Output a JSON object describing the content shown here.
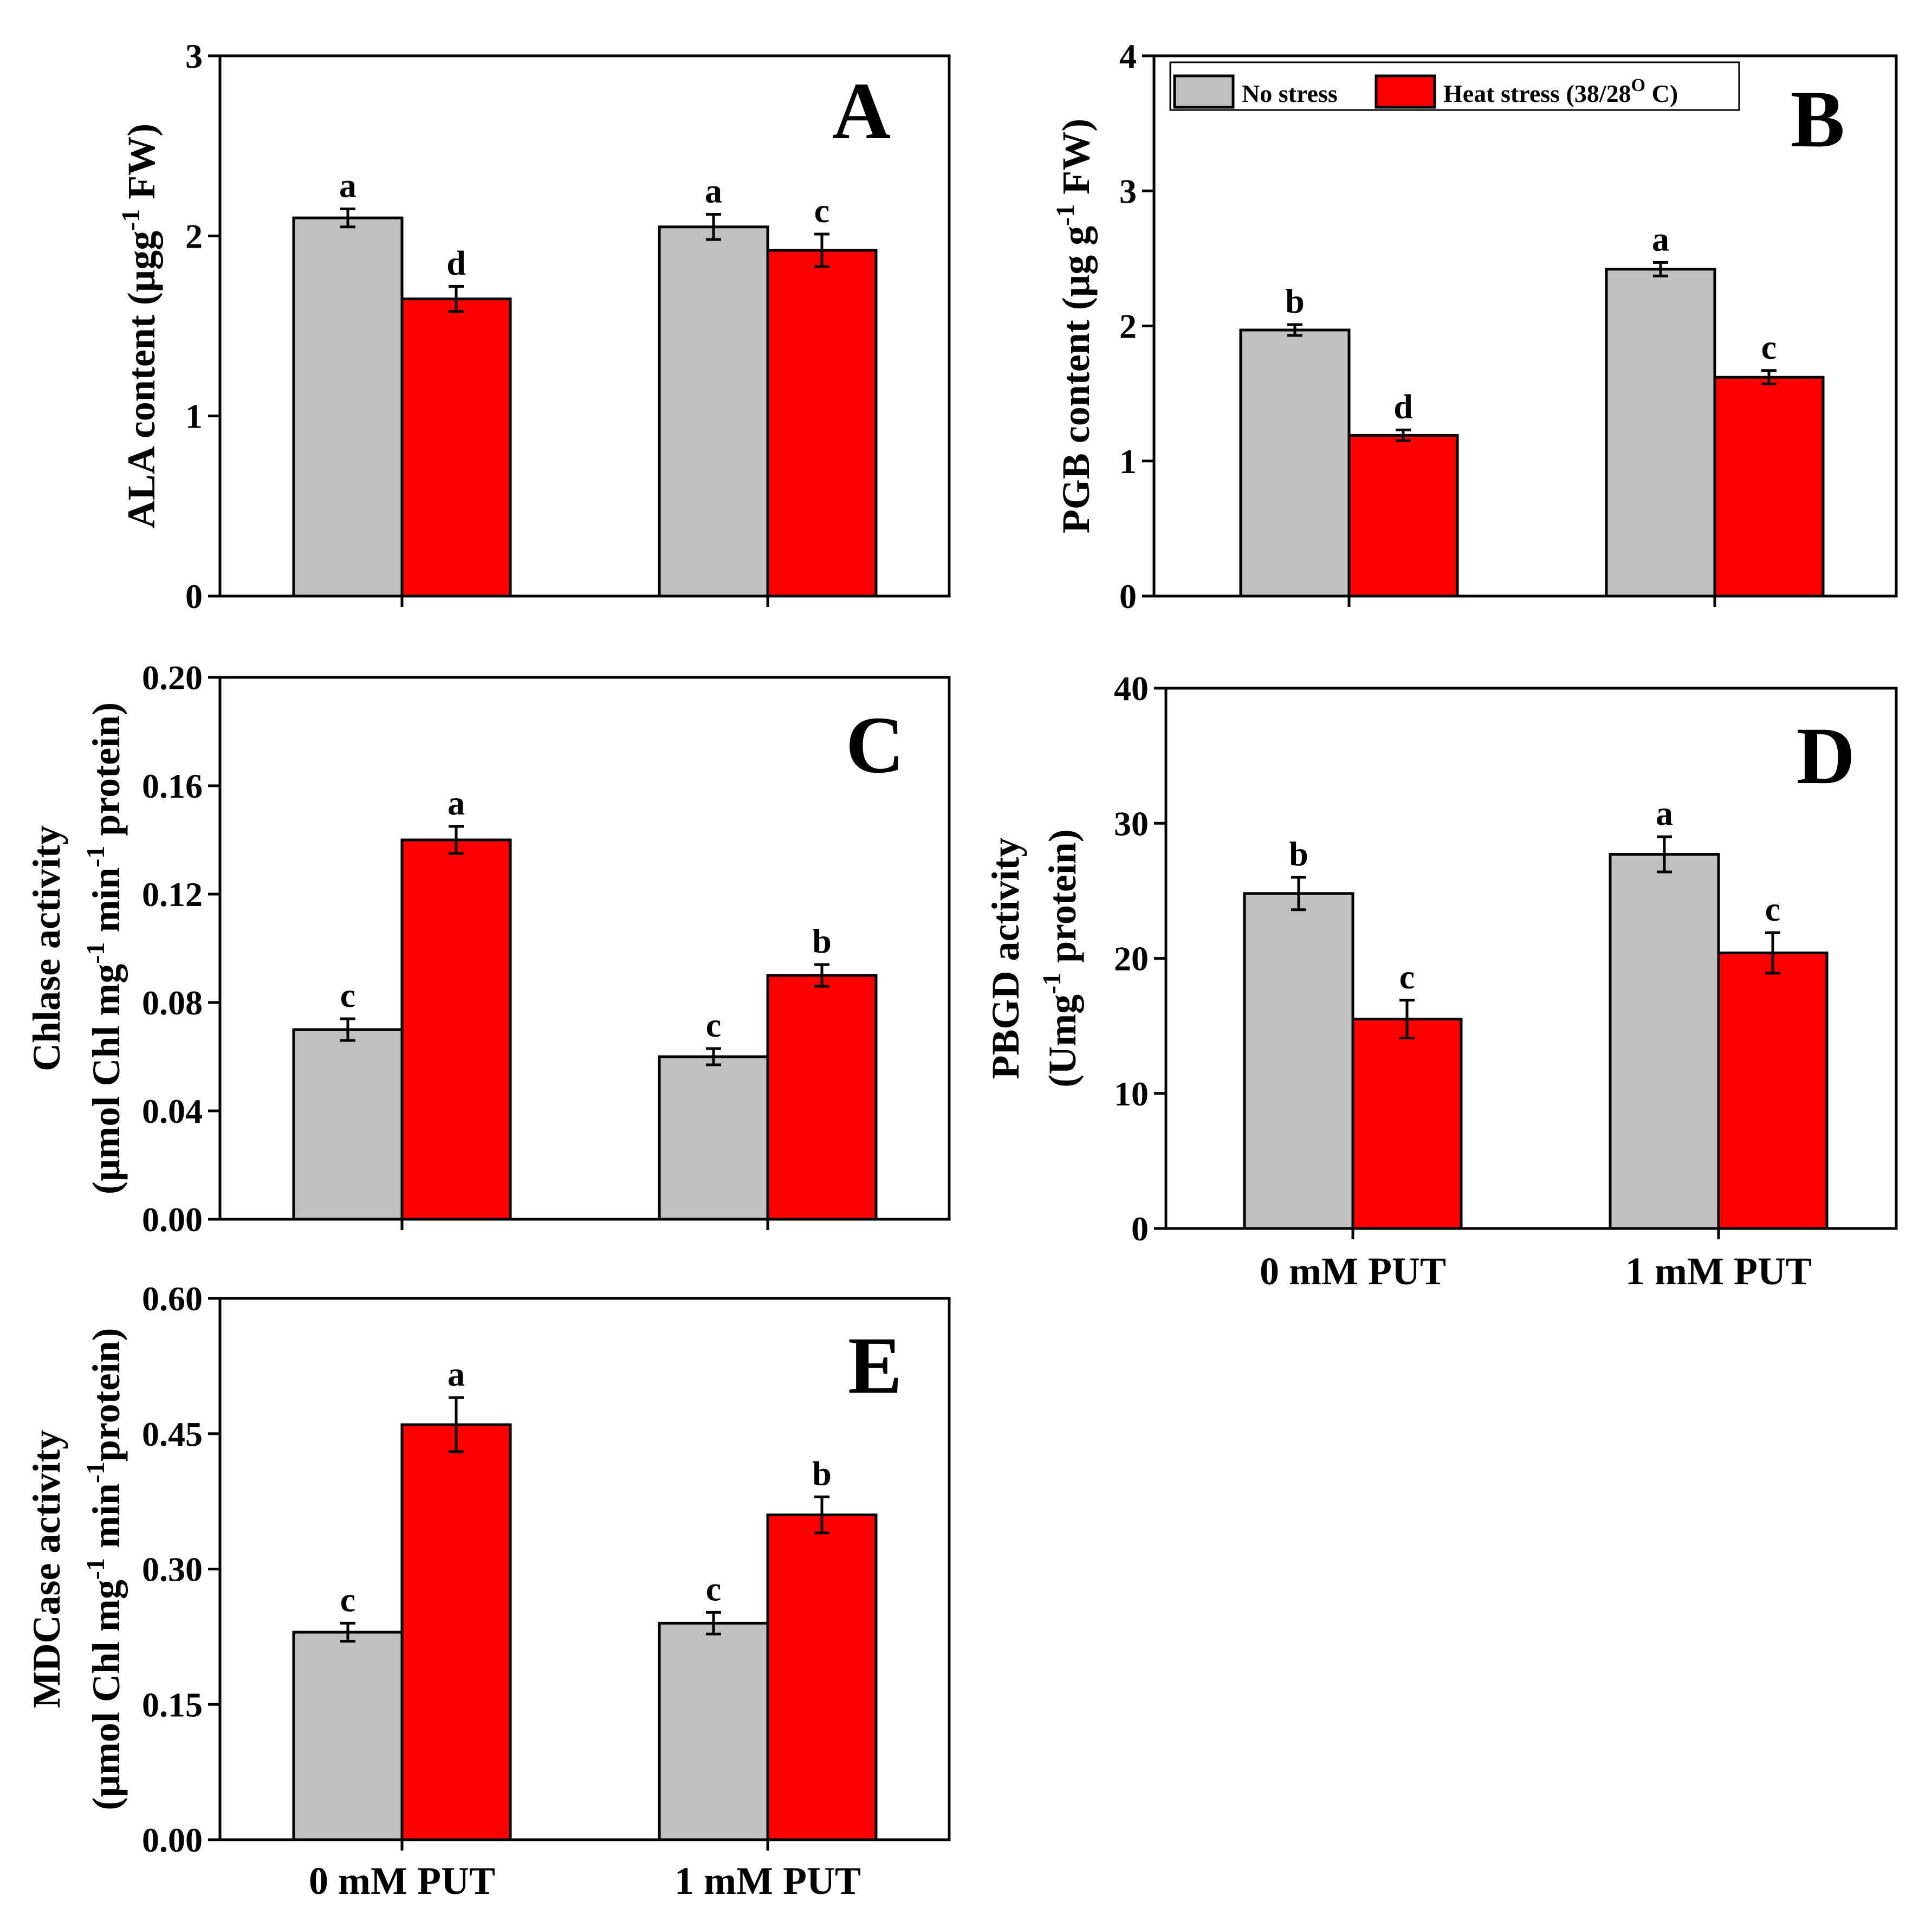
{
  "colors": {
    "no_stress": "#c0c0c0",
    "heat_stress": "#ff0000"
  },
  "legend": {
    "series_1": "No stress",
    "series_2_prefix": "Heat stress (38/28",
    "series_2_sup": "O",
    "series_2_suffix": " C)"
  },
  "chart_data": [
    {
      "panel": "A",
      "type": "bar",
      "categories": [
        "0  mM PUT",
        "1 mM PUT"
      ],
      "ylabel_main": "ALA content (µgg",
      "ylabel_sup": "-1",
      "ylabel_end": " FW)",
      "ylim": [
        0,
        3
      ],
      "ytick_labels": [
        "0",
        "1",
        "2",
        "3"
      ],
      "series": [
        {
          "name": "No stress",
          "values": [
            2.1,
            2.05
          ],
          "errors": [
            0.05,
            0.07
          ],
          "letters": [
            "a",
            "a"
          ]
        },
        {
          "name": "Heat stress (38/28O C)",
          "values": [
            1.65,
            1.92
          ],
          "errors": [
            0.07,
            0.09
          ],
          "letters": [
            "d",
            "c"
          ]
        }
      ]
    },
    {
      "panel": "B",
      "type": "bar",
      "categories": [
        "0  mM PUT",
        "1 mM PUT"
      ],
      "ylabel_main": "PGB content (µg g",
      "ylabel_sup": "-1",
      "ylabel_end": " FW)",
      "ylim": [
        0,
        4
      ],
      "ytick_labels": [
        "0",
        "1",
        "2",
        "3",
        "4"
      ],
      "series": [
        {
          "name": "No stress",
          "values": [
            1.97,
            2.42
          ],
          "errors": [
            0.04,
            0.05
          ],
          "letters": [
            "b",
            "a"
          ]
        },
        {
          "name": "Heat stress (38/28O C)",
          "values": [
            1.19,
            1.62
          ],
          "errors": [
            0.04,
            0.05
          ],
          "letters": [
            "d",
            "c"
          ]
        }
      ]
    },
    {
      "panel": "C",
      "type": "bar",
      "categories": [
        "0  mM PUT",
        "1 mM PUT"
      ],
      "ylabel_line1": "Chlase activity",
      "ylabel_l2_a": "(µmol Chl mg",
      "ylabel_l2_sup1": "-1",
      "ylabel_l2_b": "  min",
      "ylabel_l2_sup2": "-1",
      "ylabel_l2_c": " protein)",
      "ylim": [
        0,
        0.2
      ],
      "ytick_labels": [
        "0.00",
        "0.04",
        "0.08",
        "0.12",
        "0.16",
        "0.20"
      ],
      "series": [
        {
          "name": "No stress",
          "values": [
            0.07,
            0.06
          ],
          "errors": [
            0.004,
            0.003
          ],
          "letters": [
            "c",
            "c"
          ]
        },
        {
          "name": "Heat stress (38/28O C)",
          "values": [
            0.14,
            0.09
          ],
          "errors": [
            0.005,
            0.004
          ],
          "letters": [
            "a",
            "b"
          ]
        }
      ]
    },
    {
      "panel": "D",
      "type": "bar",
      "categories": [
        "0  mM PUT",
        "1 mM PUT"
      ],
      "ylabel_line1": "PBGD activity",
      "ylabel_l2_a": "(Umg",
      "ylabel_l2_sup1": "-1",
      "ylabel_l2_b": " protein)",
      "ylim": [
        0,
        40
      ],
      "ytick_labels": [
        "0",
        "10",
        "20",
        "30",
        "40"
      ],
      "series": [
        {
          "name": "No stress",
          "values": [
            24.8,
            27.7
          ],
          "errors": [
            1.2,
            1.3
          ],
          "letters": [
            "b",
            "a"
          ]
        },
        {
          "name": "Heat stress (38/28O C)",
          "values": [
            15.5,
            20.4
          ],
          "errors": [
            1.4,
            1.5
          ],
          "letters": [
            "c",
            "c"
          ]
        }
      ]
    },
    {
      "panel": "E",
      "type": "bar",
      "categories": [
        "0  mM PUT",
        "1 mM PUT"
      ],
      "ylabel_line1": "MDCase activity",
      "ylabel_l2_a": "(µmol Chl mg",
      "ylabel_l2_sup1": "-1",
      "ylabel_l2_b": " min",
      "ylabel_l2_sup2": "-1",
      "ylabel_l2_c": "protein)",
      "ylim": [
        0,
        0.6
      ],
      "ytick_labels": [
        "0.00",
        "0.15",
        "0.30",
        "0.45",
        "0.60"
      ],
      "series": [
        {
          "name": "No stress",
          "values": [
            0.23,
            0.24
          ],
          "errors": [
            0.01,
            0.012
          ],
          "letters": [
            "c",
            "c"
          ]
        },
        {
          "name": "Heat stress (38/28O C)",
          "values": [
            0.46,
            0.36
          ],
          "errors": [
            0.03,
            0.02
          ],
          "letters": [
            "a",
            "b"
          ]
        }
      ]
    }
  ]
}
